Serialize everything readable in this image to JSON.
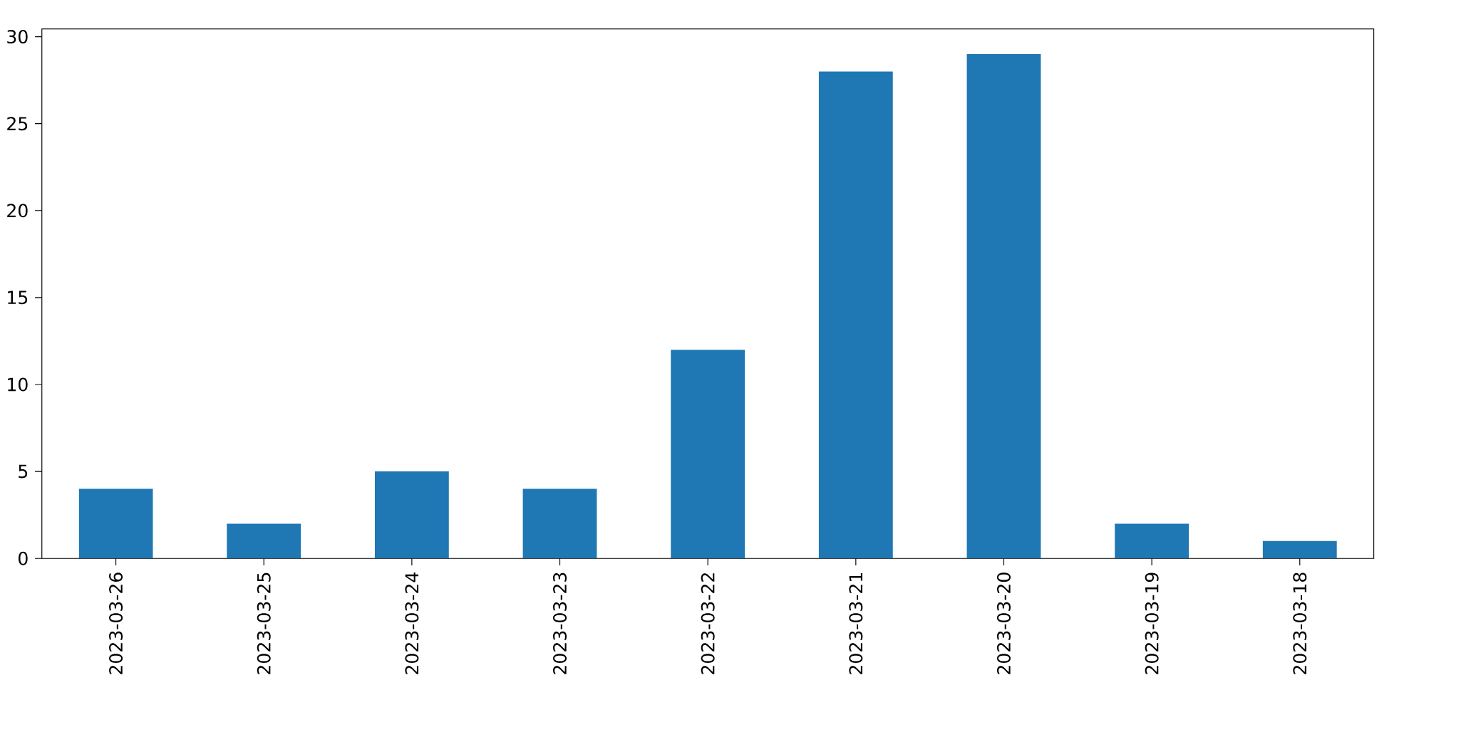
{
  "chart_data": {
    "type": "bar",
    "categories": [
      "2023-03-26",
      "2023-03-25",
      "2023-03-24",
      "2023-03-23",
      "2023-03-22",
      "2023-03-21",
      "2023-03-20",
      "2023-03-19",
      "2023-03-18"
    ],
    "values": [
      4,
      2,
      5,
      4,
      12,
      28,
      29,
      2,
      1
    ],
    "color": "#1f77b4",
    "ylim": [
      0,
      30.45
    ],
    "yticks": [
      0,
      5,
      10,
      15,
      20,
      25,
      30
    ]
  }
}
